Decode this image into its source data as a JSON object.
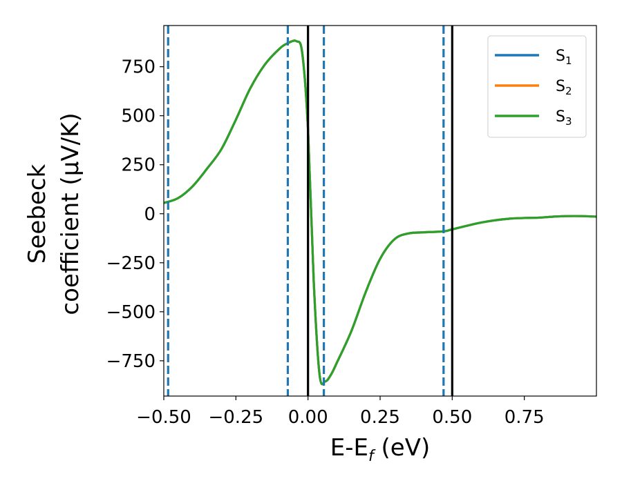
{
  "chart_data": {
    "type": "line",
    "title": "",
    "xlabel": {
      "base": "E-E",
      "sub": "f",
      "suffix": " (eV)"
    },
    "ylabel": {
      "line1": "Seebeck",
      "line2": "coefficient  (μV/K)"
    },
    "xlim": [
      -0.5,
      1.0
    ],
    "ylim": [
      -930,
      960
    ],
    "x_ticks": [
      -0.5,
      -0.25,
      0.0,
      0.25,
      0.5,
      0.75
    ],
    "x_tick_labels": [
      "−0.50",
      "−0.25",
      "0.00",
      "0.25",
      "0.50",
      "0.75"
    ],
    "y_ticks": [
      750,
      500,
      250,
      0,
      -250,
      -500,
      -750
    ],
    "y_tick_labels": [
      "750",
      "500",
      "250",
      "0",
      "−250",
      "−500",
      "−750"
    ],
    "grid": false,
    "legend_placement": "top-right",
    "series": [
      {
        "name": "S",
        "sub": "1",
        "color": "#1f77b4",
        "x": [
          -0.5,
          -0.45,
          -0.4,
          -0.35,
          -0.3,
          -0.25,
          -0.2,
          -0.15,
          -0.1,
          -0.07,
          -0.04,
          -0.02,
          0.0,
          0.02,
          0.04,
          0.06,
          0.08,
          0.1,
          0.15,
          0.2,
          0.25,
          0.3,
          0.35,
          0.4,
          0.47,
          0.5,
          0.6,
          0.7,
          0.8,
          0.85,
          0.9,
          0.95,
          1.0
        ],
        "y": [
          55,
          80,
          140,
          230,
          330,
          480,
          640,
          760,
          840,
          870,
          880,
          820,
          430,
          -350,
          -820,
          -855,
          -820,
          -760,
          -600,
          -400,
          -230,
          -130,
          -100,
          -95,
          -90,
          -80,
          -45,
          -25,
          -20,
          -15,
          -12,
          -12,
          -15
        ]
      },
      {
        "name": "S",
        "sub": "2",
        "color": "#ff7f0e",
        "x": [
          -0.5,
          -0.45,
          -0.4,
          -0.35,
          -0.3,
          -0.25,
          -0.2,
          -0.15,
          -0.1,
          -0.07,
          -0.04,
          -0.02,
          0.0,
          0.02,
          0.04,
          0.06,
          0.08,
          0.1,
          0.15,
          0.2,
          0.25,
          0.3,
          0.35,
          0.4,
          0.47,
          0.5,
          0.6,
          0.7,
          0.8,
          0.85,
          0.9,
          0.95,
          1.0
        ],
        "y": [
          55,
          80,
          140,
          230,
          330,
          480,
          640,
          760,
          840,
          870,
          880,
          820,
          430,
          -350,
          -820,
          -855,
          -820,
          -760,
          -600,
          -400,
          -230,
          -130,
          -100,
          -95,
          -90,
          -80,
          -45,
          -25,
          -20,
          -15,
          -12,
          -12,
          -15
        ]
      },
      {
        "name": "S",
        "sub": "3",
        "color": "#2ca02c",
        "x": [
          -0.5,
          -0.45,
          -0.4,
          -0.35,
          -0.3,
          -0.25,
          -0.2,
          -0.15,
          -0.1,
          -0.07,
          -0.04,
          -0.02,
          0.0,
          0.02,
          0.04,
          0.06,
          0.08,
          0.1,
          0.15,
          0.2,
          0.25,
          0.3,
          0.35,
          0.4,
          0.47,
          0.5,
          0.6,
          0.7,
          0.8,
          0.85,
          0.9,
          0.95,
          1.0
        ],
        "y": [
          55,
          80,
          140,
          230,
          330,
          480,
          640,
          760,
          840,
          870,
          880,
          820,
          430,
          -350,
          -820,
          -855,
          -820,
          -760,
          -600,
          -400,
          -230,
          -130,
          -100,
          -95,
          -90,
          -80,
          -45,
          -25,
          -20,
          -15,
          -12,
          -12,
          -15
        ]
      }
    ],
    "vlines_dashed": {
      "color": "#1f77b4",
      "x": [
        -0.485,
        -0.07,
        0.055,
        0.47
      ]
    },
    "vlines_solid": {
      "color": "#000000",
      "x": [
        0.0,
        0.5
      ]
    }
  }
}
